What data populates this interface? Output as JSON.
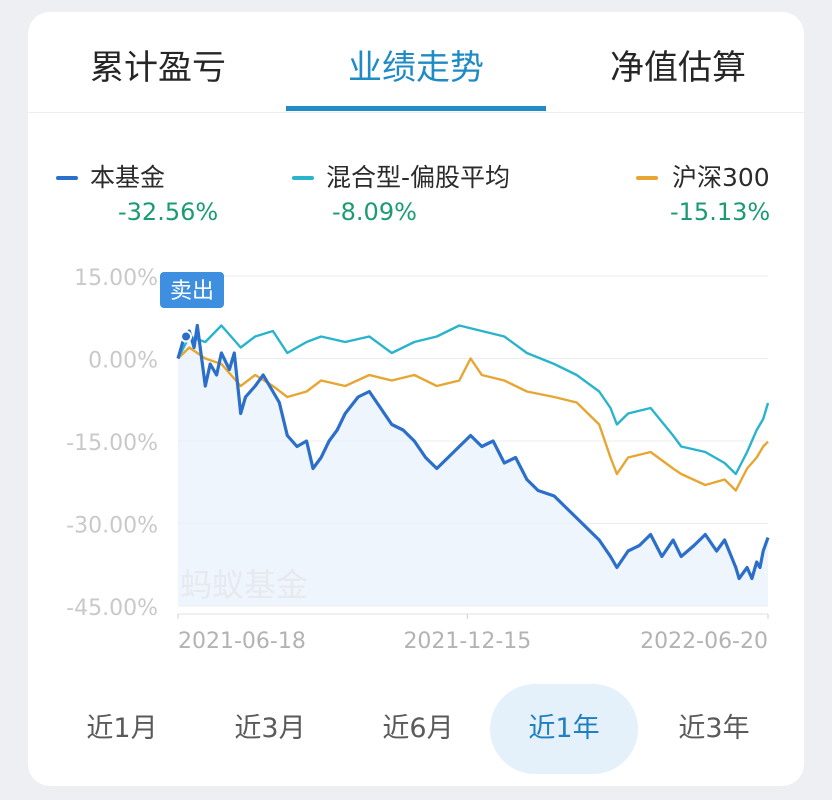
{
  "tabs": [
    "累计盈亏",
    "业绩走势",
    "净值估算"
  ],
  "active_tab": 1,
  "legend": [
    {
      "name": "本基金",
      "value": "-32.56%",
      "color": "#2b6fca"
    },
    {
      "name": "混合型-偏股平均",
      "value": "-8.09%",
      "color": "#29b4cc"
    },
    {
      "name": "沪深300",
      "value": "-15.13%",
      "color": "#e7a632"
    }
  ],
  "periods": [
    "近1月",
    "近3月",
    "近6月",
    "近1年",
    "近3年"
  ],
  "active_period": 3,
  "sell_tag": "卖出",
  "watermark": "蚂蚁基金",
  "colors": {
    "accent": "#1f8cc8",
    "positive_text": "#1a9b73",
    "fund": "#2b6fca",
    "category_avg": "#29b4cc",
    "csi300": "#e7a632",
    "area_fill": "#eaf2fb"
  },
  "chart_data": {
    "type": "line",
    "x_start": "2021-06-18",
    "x_end": "2022-06-20",
    "x_ticks": [
      "2021-06-18",
      "2021-12-15",
      "2022-06-20"
    ],
    "y_ticks": [
      "15.00%",
      "0.00%",
      "-15.00%",
      "-30.00%",
      "-45.00%"
    ],
    "ylim": [
      -45,
      15
    ],
    "grid": true,
    "legend_position": "top",
    "series": [
      {
        "name": "本基金",
        "color": "#2b6fca",
        "points": [
          [
            "2021-06-18",
            0
          ],
          [
            "2021-06-21",
            3
          ],
          [
            "2021-06-23",
            4
          ],
          [
            "2021-06-25",
            5
          ],
          [
            "2021-06-28",
            2
          ],
          [
            "2021-06-30",
            6
          ],
          [
            "2021-07-05",
            -5
          ],
          [
            "2021-07-08",
            -1
          ],
          [
            "2021-07-12",
            -3
          ],
          [
            "2021-07-15",
            1
          ],
          [
            "2021-07-20",
            -2
          ],
          [
            "2021-07-23",
            1
          ],
          [
            "2021-07-27",
            -10
          ],
          [
            "2021-07-30",
            -7
          ],
          [
            "2021-08-05",
            -5
          ],
          [
            "2021-08-10",
            -3
          ],
          [
            "2021-08-16",
            -6
          ],
          [
            "2021-08-20",
            -8
          ],
          [
            "2021-08-25",
            -14
          ],
          [
            "2021-08-31",
            -16
          ],
          [
            "2021-09-06",
            -15
          ],
          [
            "2021-09-10",
            -20
          ],
          [
            "2021-09-15",
            -18
          ],
          [
            "2021-09-20",
            -15
          ],
          [
            "2021-09-25",
            -13
          ],
          [
            "2021-09-30",
            -10
          ],
          [
            "2021-10-08",
            -7
          ],
          [
            "2021-10-15",
            -6
          ],
          [
            "2021-10-22",
            -9
          ],
          [
            "2021-10-29",
            -12
          ],
          [
            "2021-11-05",
            -13
          ],
          [
            "2021-11-12",
            -15
          ],
          [
            "2021-11-19",
            -18
          ],
          [
            "2021-11-26",
            -20
          ],
          [
            "2021-12-03",
            -18
          ],
          [
            "2021-12-10",
            -16
          ],
          [
            "2021-12-17",
            -14
          ],
          [
            "2021-12-24",
            -16
          ],
          [
            "2021-12-31",
            -15
          ],
          [
            "2022-01-07",
            -19
          ],
          [
            "2022-01-14",
            -18
          ],
          [
            "2022-01-21",
            -22
          ],
          [
            "2022-01-28",
            -24
          ],
          [
            "2022-02-07",
            -25
          ],
          [
            "2022-02-14",
            -27
          ],
          [
            "2022-02-21",
            -29
          ],
          [
            "2022-02-28",
            -31
          ],
          [
            "2022-03-07",
            -33
          ],
          [
            "2022-03-14",
            -36
          ],
          [
            "2022-03-18",
            -38
          ],
          [
            "2022-03-25",
            -35
          ],
          [
            "2022-04-01",
            -34
          ],
          [
            "2022-04-08",
            -32
          ],
          [
            "2022-04-15",
            -36
          ],
          [
            "2022-04-22",
            -33
          ],
          [
            "2022-04-27",
            -36
          ],
          [
            "2022-05-05",
            -34
          ],
          [
            "2022-05-12",
            -32
          ],
          [
            "2022-05-19",
            -35
          ],
          [
            "2022-05-24",
            -33
          ],
          [
            "2022-05-31",
            -38
          ],
          [
            "2022-06-02",
            -40
          ],
          [
            "2022-06-07",
            -38
          ],
          [
            "2022-06-10",
            -40
          ],
          [
            "2022-06-13",
            -37
          ],
          [
            "2022-06-15",
            -38
          ],
          [
            "2022-06-17",
            -35
          ],
          [
            "2022-06-20",
            -32.56
          ]
        ]
      },
      {
        "name": "混合型-偏股平均",
        "color": "#29b4cc",
        "points": [
          [
            "2021-06-18",
            0
          ],
          [
            "2021-06-25",
            4
          ],
          [
            "2021-07-05",
            3
          ],
          [
            "2021-07-15",
            6
          ],
          [
            "2021-07-27",
            2
          ],
          [
            "2021-08-05",
            4
          ],
          [
            "2021-08-16",
            5
          ],
          [
            "2021-08-25",
            1
          ],
          [
            "2021-09-06",
            3
          ],
          [
            "2021-09-15",
            4
          ],
          [
            "2021-09-30",
            3
          ],
          [
            "2021-10-15",
            4
          ],
          [
            "2021-10-29",
            1
          ],
          [
            "2021-11-12",
            3
          ],
          [
            "2021-11-26",
            4
          ],
          [
            "2021-12-10",
            6
          ],
          [
            "2021-12-24",
            5
          ],
          [
            "2022-01-07",
            4
          ],
          [
            "2022-01-21",
            1
          ],
          [
            "2022-02-07",
            -1
          ],
          [
            "2022-02-21",
            -3
          ],
          [
            "2022-03-07",
            -6
          ],
          [
            "2022-03-14",
            -9
          ],
          [
            "2022-03-18",
            -12
          ],
          [
            "2022-03-25",
            -10
          ],
          [
            "2022-04-08",
            -9
          ],
          [
            "2022-04-22",
            -14
          ],
          [
            "2022-04-27",
            -16
          ],
          [
            "2022-05-12",
            -17
          ],
          [
            "2022-05-24",
            -19
          ],
          [
            "2022-05-31",
            -21
          ],
          [
            "2022-06-07",
            -17
          ],
          [
            "2022-06-13",
            -13
          ],
          [
            "2022-06-17",
            -11
          ],
          [
            "2022-06-20",
            -8.09
          ]
        ]
      },
      {
        "name": "沪深300",
        "color": "#e7a632",
        "points": [
          [
            "2021-06-18",
            0
          ],
          [
            "2021-06-25",
            2
          ],
          [
            "2021-07-05",
            0
          ],
          [
            "2021-07-15",
            -1
          ],
          [
            "2021-07-27",
            -5
          ],
          [
            "2021-08-05",
            -3
          ],
          [
            "2021-08-16",
            -5
          ],
          [
            "2021-08-25",
            -7
          ],
          [
            "2021-09-06",
            -6
          ],
          [
            "2021-09-15",
            -4
          ],
          [
            "2021-09-30",
            -5
          ],
          [
            "2021-10-15",
            -3
          ],
          [
            "2021-10-29",
            -4
          ],
          [
            "2021-11-12",
            -3
          ],
          [
            "2021-11-26",
            -5
          ],
          [
            "2021-12-10",
            -4
          ],
          [
            "2021-12-17",
            0
          ],
          [
            "2021-12-24",
            -3
          ],
          [
            "2022-01-07",
            -4
          ],
          [
            "2022-01-21",
            -6
          ],
          [
            "2022-02-07",
            -7
          ],
          [
            "2022-02-21",
            -8
          ],
          [
            "2022-03-07",
            -12
          ],
          [
            "2022-03-14",
            -18
          ],
          [
            "2022-03-18",
            -21
          ],
          [
            "2022-03-25",
            -18
          ],
          [
            "2022-04-08",
            -17
          ],
          [
            "2022-04-22",
            -20
          ],
          [
            "2022-04-27",
            -21
          ],
          [
            "2022-05-12",
            -23
          ],
          [
            "2022-05-24",
            -22
          ],
          [
            "2022-05-31",
            -24
          ],
          [
            "2022-06-07",
            -20
          ],
          [
            "2022-06-13",
            -18
          ],
          [
            "2022-06-17",
            -16
          ],
          [
            "2022-06-20",
            -15.13
          ]
        ]
      }
    ]
  }
}
